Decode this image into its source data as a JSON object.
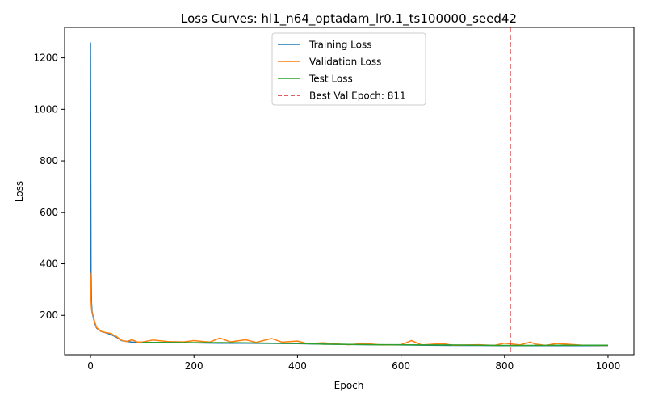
{
  "chart_data": {
    "type": "line",
    "title": "Loss Curves: hl1_n64_optadam_lr0.1_ts100000_seed42",
    "xlabel": "Epoch",
    "ylabel": "Loss",
    "xlim": [
      -50,
      1050
    ],
    "ylim": [
      47,
      1318
    ],
    "xticks": [
      0,
      200,
      400,
      600,
      800,
      1000
    ],
    "yticks": [
      200,
      400,
      600,
      800,
      1000,
      1200
    ],
    "grid": false,
    "legend_position": "top-center",
    "best_val_epoch": 811,
    "series": [
      {
        "name": "Training Loss",
        "color": "#1f77b4",
        "x": [
          0,
          1,
          2,
          3,
          5,
          8,
          12,
          20,
          30,
          40,
          50,
          60,
          80,
          100,
          150,
          200,
          250,
          300,
          350,
          400,
          450,
          500,
          550,
          600,
          650,
          700,
          750,
          800,
          850,
          900,
          950,
          1000
        ],
        "y": [
          1260,
          370,
          250,
          215,
          195,
          170,
          150,
          138,
          132,
          125,
          115,
          102,
          96,
          94,
          93,
          93,
          92,
          92,
          91,
          90,
          88,
          87,
          86,
          85,
          84,
          83,
          83,
          82,
          82,
          82,
          82,
          82
        ]
      },
      {
        "name": "Validation Loss",
        "color": "#ff7f0e",
        "x": [
          0,
          1,
          2,
          3,
          5,
          8,
          12,
          20,
          30,
          40,
          45,
          50,
          60,
          70,
          80,
          90,
          100,
          120,
          150,
          180,
          200,
          230,
          250,
          270,
          300,
          320,
          350,
          370,
          400,
          420,
          450,
          480,
          500,
          530,
          560,
          600,
          620,
          640,
          680,
          700,
          750,
          780,
          800,
          830,
          850,
          860,
          880,
          900,
          950,
          1000
        ],
        "y": [
          365,
          260,
          225,
          210,
          200,
          175,
          152,
          138,
          133,
          130,
          122,
          118,
          103,
          98,
          105,
          97,
          96,
          104,
          98,
          97,
          102,
          96,
          112,
          97,
          105,
          95,
          110,
          96,
          100,
          90,
          93,
          88,
          86,
          91,
          85,
          86,
          102,
          85,
          90,
          84,
          86,
          83,
          92,
          85,
          96,
          88,
          83,
          91,
          84,
          83
        ]
      },
      {
        "name": "Test Loss",
        "color": "#2ca02c",
        "x": [
          100,
          150,
          200,
          250,
          300,
          350,
          400,
          450,
          500,
          550,
          600,
          650,
          700,
          750,
          800,
          850,
          900,
          950,
          1000
        ],
        "y": [
          95,
          95,
          94,
          94,
          93,
          92,
          91,
          88,
          87,
          86,
          86,
          85,
          85,
          84,
          83,
          83,
          84,
          84,
          84
        ]
      }
    ],
    "annotations": [
      {
        "type": "vline",
        "x": 811,
        "color": "#d62728",
        "style": "dashed",
        "label": "Best Val Epoch: 811"
      }
    ]
  }
}
